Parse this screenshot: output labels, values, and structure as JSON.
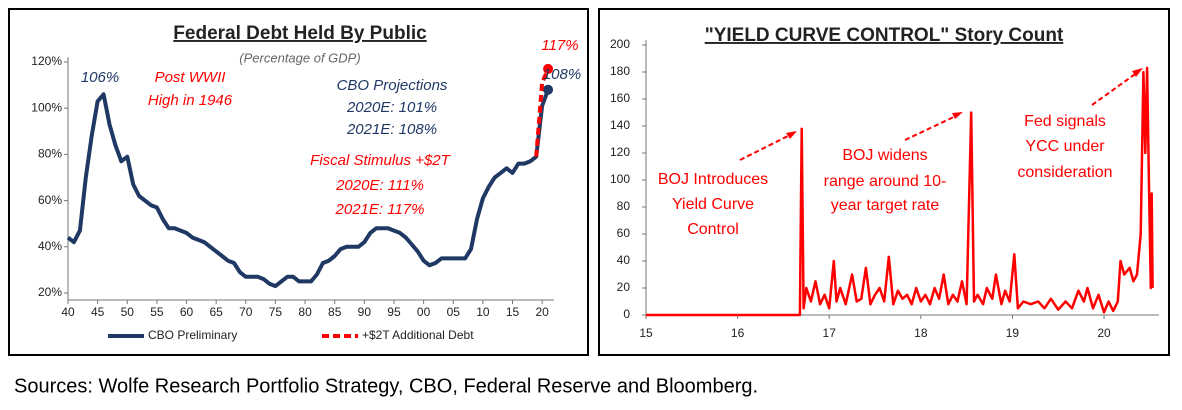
{
  "chart_data": [
    {
      "type": "line",
      "title": "Federal Debt Held By Public",
      "subtitle": "(Percentage of GDP)",
      "xlim": [
        1940,
        2022
      ],
      "ylim": [
        20,
        120
      ],
      "xticks": [
        {
          "value": 1940,
          "label": "40"
        },
        {
          "value": 1945,
          "label": "45"
        },
        {
          "value": 1950,
          "label": "50"
        },
        {
          "value": 1955,
          "label": "55"
        },
        {
          "value": 1960,
          "label": "60"
        },
        {
          "value": 1965,
          "label": "65"
        },
        {
          "value": 1970,
          "label": "70"
        },
        {
          "value": 1975,
          "label": "75"
        },
        {
          "value": 1980,
          "label": "80"
        },
        {
          "value": 1985,
          "label": "85"
        },
        {
          "value": 1990,
          "label": "90"
        },
        {
          "value": 1995,
          "label": "95"
        },
        {
          "value": 2000,
          "label": "00"
        },
        {
          "value": 2005,
          "label": "05"
        },
        {
          "value": 2010,
          "label": "10"
        },
        {
          "value": 2015,
          "label": "15"
        },
        {
          "value": 2020,
          "label": "20"
        }
      ],
      "yticks": [
        {
          "value": 20,
          "label": "20%"
        },
        {
          "value": 40,
          "label": "40%"
        },
        {
          "value": 60,
          "label": "60%"
        },
        {
          "value": 80,
          "label": "80%"
        },
        {
          "value": 100,
          "label": "100%"
        },
        {
          "value": 120,
          "label": "120%"
        }
      ],
      "legend": "bottom",
      "series": [
        {
          "name": "CBO Preliminary",
          "color": "#1f3864",
          "dashed": false,
          "end_dot": true,
          "x": [
            1940,
            1941,
            1942,
            1943,
            1944,
            1945,
            1946,
            1947,
            1948,
            1949,
            1950,
            1951,
            1952,
            1953,
            1954,
            1955,
            1956,
            1957,
            1958,
            1959,
            1960,
            1961,
            1962,
            1963,
            1964,
            1965,
            1966,
            1967,
            1968,
            1969,
            1970,
            1971,
            1972,
            1973,
            1974,
            1975,
            1976,
            1977,
            1978,
            1979,
            1980,
            1981,
            1982,
            1983,
            1984,
            1985,
            1986,
            1987,
            1988,
            1989,
            1990,
            1991,
            1992,
            1993,
            1994,
            1995,
            1996,
            1997,
            1998,
            1999,
            2000,
            2001,
            2002,
            2003,
            2004,
            2005,
            2006,
            2007,
            2008,
            2009,
            2010,
            2011,
            2012,
            2013,
            2014,
            2015,
            2016,
            2017,
            2018,
            2019,
            2020,
            2021
          ],
          "values": [
            44,
            42,
            47,
            70,
            88,
            103,
            106,
            93,
            84,
            77,
            79,
            67,
            62,
            60,
            58,
            57,
            52,
            48,
            48,
            47,
            46,
            44,
            43,
            42,
            40,
            38,
            36,
            34,
            33,
            29,
            27,
            27,
            27,
            26,
            24,
            23,
            25,
            27,
            27,
            25,
            25,
            25,
            28,
            33,
            34,
            36,
            39,
            40,
            40,
            40,
            42,
            46,
            48,
            48,
            48,
            47,
            46,
            44,
            41,
            38,
            34,
            32,
            33,
            35,
            35,
            35,
            35,
            35,
            39,
            52,
            61,
            66,
            70,
            72,
            74,
            72,
            76,
            76,
            77,
            79,
            101,
            108
          ]
        },
        {
          "name": "+$2T Additional Debt",
          "color": "#ff0000",
          "dashed": true,
          "end_dot": true,
          "x": [
            2019,
            2020,
            2021
          ],
          "values": [
            79,
            111,
            117
          ]
        }
      ],
      "annotations": [
        [
          "106%"
        ],
        [
          "Post WWII",
          "High in 1946"
        ],
        [
          "CBO Projections",
          "2020E: 101%",
          "2021E: 108%"
        ],
        [
          "Fiscal Stimulus +$2T",
          "2020E: 111%",
          "2021E: 117%"
        ],
        [
          "117%"
        ],
        [
          "108%"
        ]
      ]
    },
    {
      "type": "line",
      "title": "\"YIELD CURVE CONTROL\" Story Count",
      "xlim": [
        2015,
        2020.6
      ],
      "ylim": [
        0,
        200
      ],
      "xticks": [
        {
          "value": 2015,
          "label": "15"
        },
        {
          "value": 2016,
          "label": "16"
        },
        {
          "value": 2017,
          "label": "17"
        },
        {
          "value": 2018,
          "label": "18"
        },
        {
          "value": 2019,
          "label": "19"
        },
        {
          "value": 2020,
          "label": "20"
        }
      ],
      "yticks": [
        0,
        20,
        40,
        60,
        80,
        100,
        120,
        140,
        160,
        180,
        200
      ],
      "color": "#ff0000",
      "x": [
        2015.0,
        2016.68,
        2016.7,
        2016.72,
        2016.75,
        2016.8,
        2016.85,
        2016.9,
        2016.95,
        2017.0,
        2017.05,
        2017.08,
        2017.12,
        2017.18,
        2017.25,
        2017.3,
        2017.35,
        2017.4,
        2017.45,
        2017.5,
        2017.55,
        2017.6,
        2017.65,
        2017.7,
        2017.75,
        2017.8,
        2017.85,
        2017.9,
        2017.95,
        2018.0,
        2018.05,
        2018.1,
        2018.15,
        2018.2,
        2018.25,
        2018.3,
        2018.35,
        2018.4,
        2018.45,
        2018.5,
        2018.55,
        2018.58,
        2018.62,
        2018.68,
        2018.72,
        2018.78,
        2018.82,
        2018.88,
        2018.92,
        2018.97,
        2019.02,
        2019.06,
        2019.12,
        2019.2,
        2019.28,
        2019.35,
        2019.42,
        2019.5,
        2019.58,
        2019.65,
        2019.72,
        2019.78,
        2019.82,
        2019.88,
        2019.94,
        2020.0,
        2020.05,
        2020.1,
        2020.15,
        2020.18,
        2020.22,
        2020.28,
        2020.32,
        2020.36,
        2020.4,
        2020.43,
        2020.45,
        2020.47,
        2020.49,
        2020.51,
        2020.52,
        2020.53
      ],
      "values": [
        0,
        0,
        138,
        5,
        20,
        10,
        25,
        8,
        15,
        5,
        40,
        10,
        20,
        8,
        30,
        10,
        12,
        35,
        8,
        15,
        20,
        10,
        43,
        8,
        18,
        12,
        15,
        8,
        20,
        10,
        15,
        8,
        20,
        12,
        30,
        8,
        15,
        10,
        25,
        8,
        150,
        10,
        15,
        8,
        20,
        12,
        30,
        8,
        18,
        10,
        45,
        5,
        10,
        8,
        10,
        5,
        12,
        4,
        10,
        5,
        18,
        10,
        20,
        5,
        15,
        2,
        10,
        3,
        10,
        40,
        30,
        35,
        25,
        30,
        60,
        180,
        120,
        183,
        100,
        20,
        90,
        20
      ],
      "annotations": [
        [
          "BOJ Introduces",
          "Yield Curve",
          "Control"
        ],
        [
          "BOJ widens",
          "range around 10-",
          "year target rate"
        ],
        [
          "Fed signals",
          "YCC under",
          "consideration"
        ]
      ]
    }
  ],
  "source": "Sources: Wolfe Research Portfolio Strategy, CBO, Federal Reserve and Bloomberg."
}
